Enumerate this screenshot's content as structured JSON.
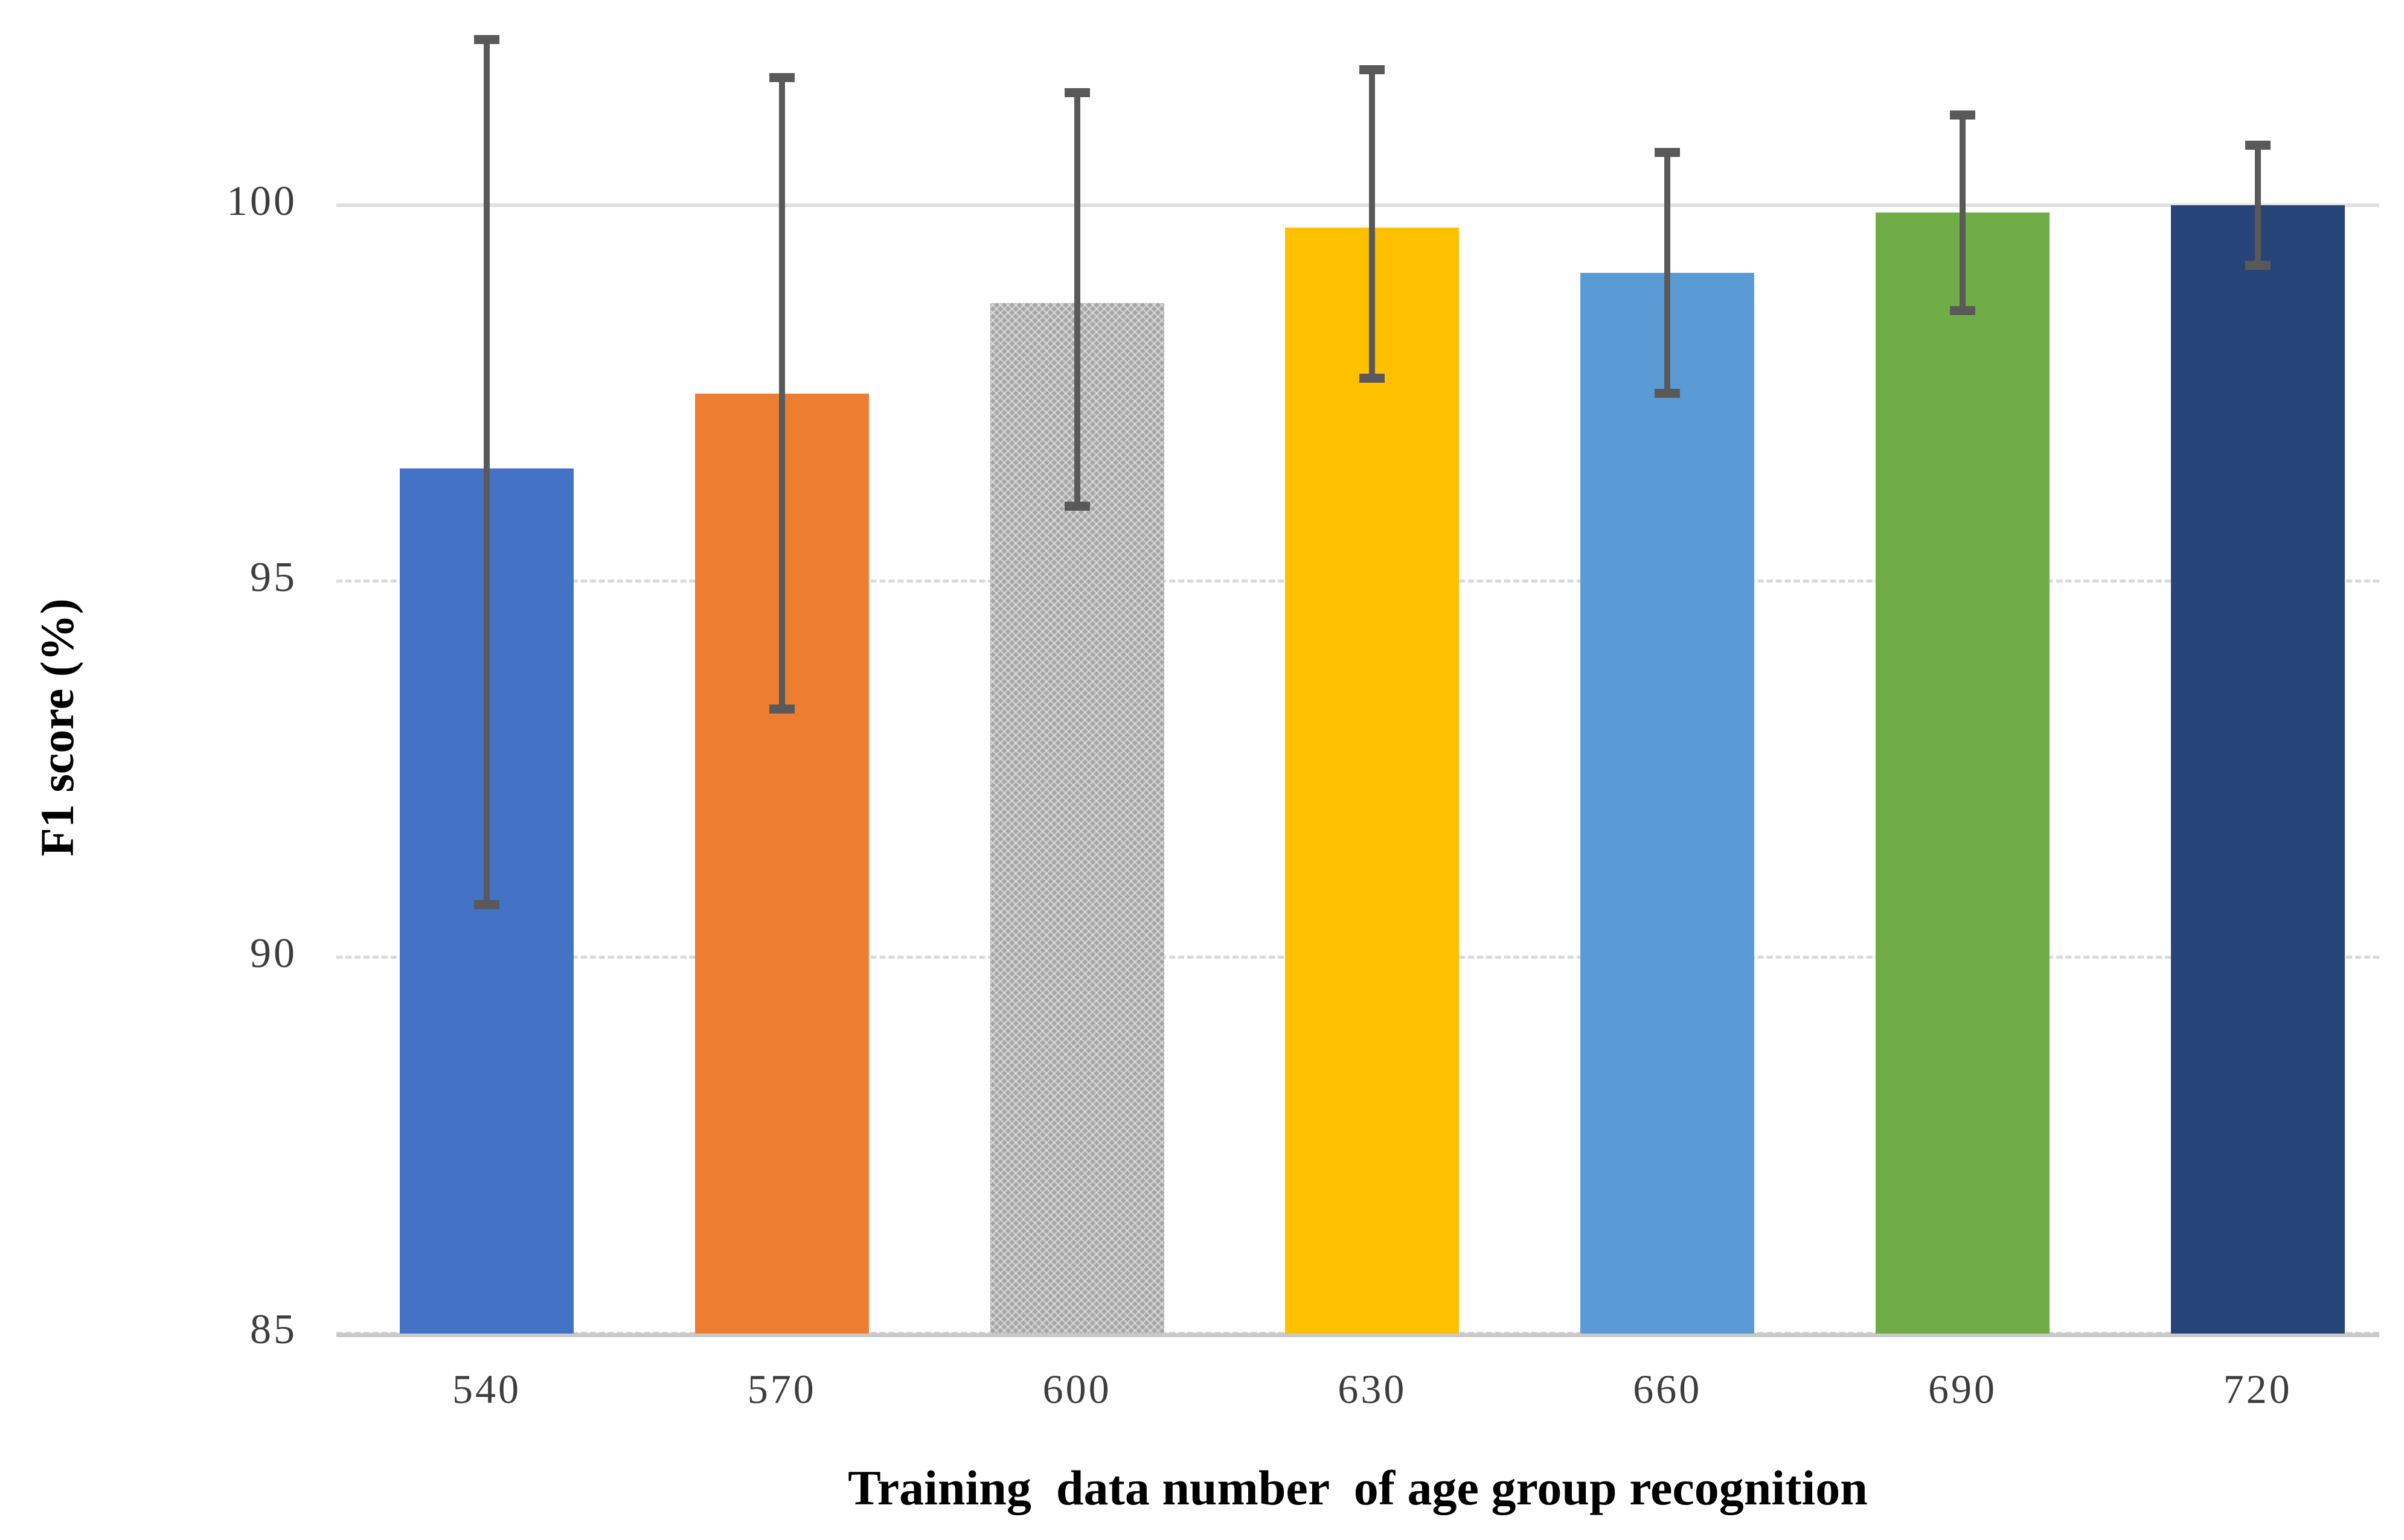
{
  "chart_data": {
    "type": "bar",
    "title": "",
    "xlabel": "Training  data number  of age group recognition",
    "ylabel": "F1 score (%)",
    "categories": [
      "540",
      "570",
      "600",
      "630",
      "660",
      "690",
      "720"
    ],
    "values": [
      96.5,
      97.5,
      98.7,
      99.7,
      99.1,
      99.9,
      100.0
    ],
    "error_high": [
      102.2,
      101.7,
      101.5,
      101.8,
      100.7,
      101.2,
      100.8
    ],
    "error_low": [
      90.7,
      93.3,
      96.0,
      97.7,
      97.5,
      98.6,
      99.2
    ],
    "bar_colors": [
      "#4472C4",
      "#ED7D31",
      "#A5A5A5",
      "#FFC000",
      "#5B9BD5",
      "#70AD47",
      "#264478"
    ],
    "patterned_bar_index": 2,
    "y_ticks": [
      100,
      95,
      90,
      85
    ],
    "ylim": [
      85,
      102.75
    ],
    "grid": "horizontal-dashed",
    "gridline_color": "#d9d9d9",
    "error_bar_color": "#595959",
    "legend": "none"
  }
}
